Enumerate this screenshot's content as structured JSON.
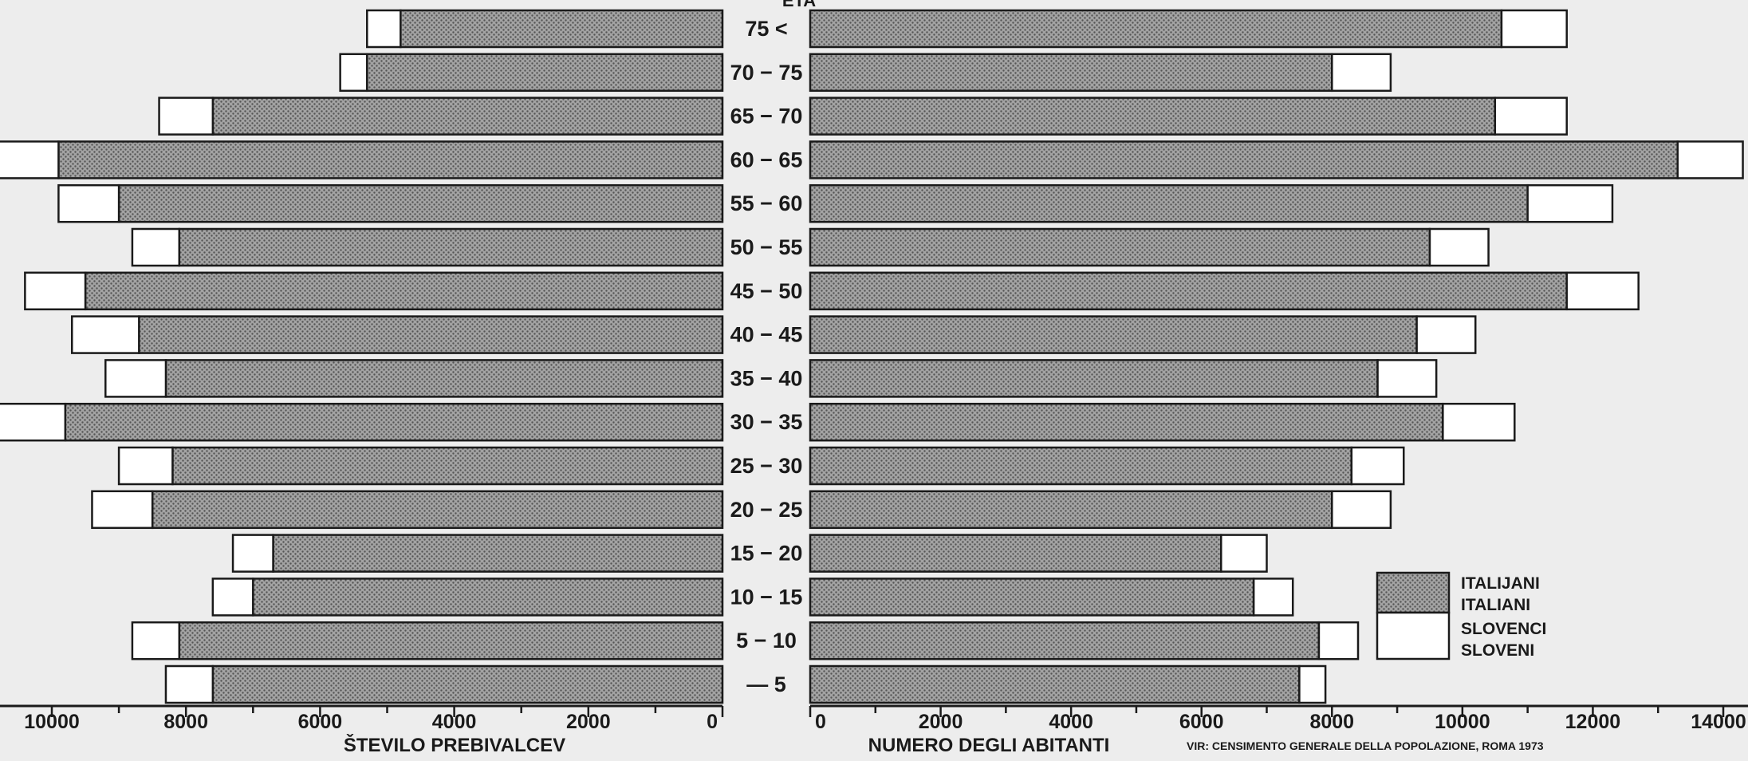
{
  "chart_data": {
    "type": "bar",
    "orientation": "horizontal",
    "layout": "population-pyramid",
    "age_axis_title": "ETA",
    "categories": [
      "75 <",
      "70 − 75",
      "65 − 70",
      "60 − 65",
      "55 − 60",
      "50 − 55",
      "45 − 50",
      "40 − 45",
      "35 − 40",
      "30 − 35",
      "25 − 30",
      "20 − 25",
      "15 − 20",
      "10 − 15",
      "5 − 10",
      "— 5"
    ],
    "left_panel": {
      "xlabel": "ŠTEVILO PREBIVALCEV",
      "xlim": [
        0,
        10000
      ],
      "ticks": [
        10000,
        8000,
        6000,
        4000,
        2000,
        0
      ],
      "series": [
        {
          "values": [
            4800,
            5300,
            7600,
            9900,
            9000,
            8100,
            9500,
            8700,
            8300,
            9800,
            8200,
            8500,
            6700,
            7000,
            8100,
            7600
          ]
        },
        {
          "values": [
            500,
            400,
            800,
            1100,
            900,
            700,
            900,
            1000,
            900,
            1000,
            800,
            900,
            600,
            600,
            700,
            700
          ]
        }
      ]
    },
    "right_panel": {
      "xlabel": "NUMERO DEGLI ABITANTI",
      "xlim": [
        0,
        14000
      ],
      "ticks": [
        0,
        2000,
        4000,
        6000,
        8000,
        10000,
        12000,
        14000
      ],
      "series": [
        {
          "name": "ITALIANI",
          "values": [
            10600,
            8000,
            10500,
            13300,
            11000,
            9500,
            11600,
            9300,
            8700,
            9700,
            8300,
            8000,
            6300,
            6800,
            7800,
            7500
          ]
        },
        {
          "name": "SLOVENI",
          "values": [
            1000,
            900,
            1100,
            1000,
            1300,
            900,
            1100,
            900,
            900,
            1100,
            800,
            900,
            700,
            600,
            600,
            400
          ]
        }
      ]
    },
    "legend": {
      "placement": "bottom-right",
      "entries": [
        {
          "labels": [
            "ITALIJANI",
            "ITALIANI"
          ],
          "style": "hatched"
        },
        {
          "labels": [
            "SLOVENCI",
            "SLOVENI"
          ],
          "style": "plain"
        }
      ]
    },
    "source_note": "VIR: CENSIMENTO GENERALE DELLA POPOLAZIONE, ROMA 1973",
    "colors": {
      "hatched_fill": "#9e9e9e",
      "plain_fill": "#ffffff",
      "stroke": "#1a1a1a"
    }
  }
}
